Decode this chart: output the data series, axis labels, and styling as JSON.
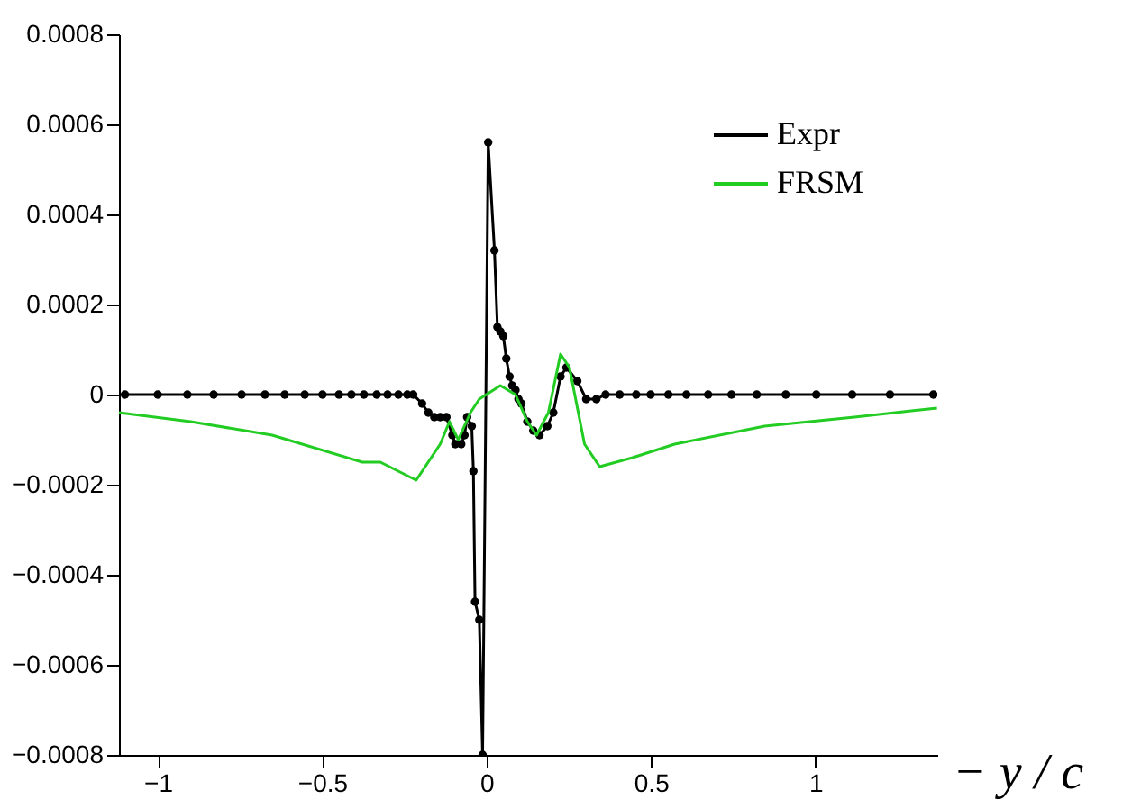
{
  "chart_data": {
    "type": "line",
    "xlabel": "− y / c",
    "xlim": [
      -1.118,
      1.371
    ],
    "xticks": [
      -1,
      -0.5,
      0,
      0.5,
      1
    ],
    "ylim": [
      -0.0008,
      0.0008
    ],
    "yticks": [
      -0.0008,
      -0.0006,
      -0.0004,
      -0.0002,
      0,
      0.0002,
      0.0004,
      0.0006,
      0.0008
    ],
    "grid": false,
    "legend": "top right",
    "series": [
      {
        "name": "Expr",
        "color": "#000000",
        "marker": "circle",
        "x": [
          -1.1,
          -1.0,
          -0.91,
          -0.83,
          -0.745,
          -0.674,
          -0.614,
          -0.553,
          -0.499,
          -0.449,
          -0.411,
          -0.373,
          -0.334,
          -0.301,
          -0.268,
          -0.241,
          -0.223,
          -0.196,
          -0.177,
          -0.159,
          -0.141,
          -0.122,
          -0.104,
          -0.095,
          -0.077,
          -0.067,
          -0.059,
          -0.045,
          -0.04,
          -0.035,
          -0.022,
          -0.012,
          0.005,
          0.024,
          0.033,
          0.042,
          0.051,
          0.06,
          0.07,
          0.078,
          0.088,
          0.097,
          0.106,
          0.124,
          0.142,
          0.161,
          0.185,
          0.203,
          0.225,
          0.243,
          0.276,
          0.303,
          0.334,
          0.362,
          0.405,
          0.455,
          0.499,
          0.553,
          0.608,
          0.674,
          0.745,
          0.822,
          0.91,
          1.003,
          1.112,
          1.227,
          1.359
        ],
        "values": [
          0,
          0,
          0,
          0,
          0,
          0,
          0,
          0,
          0,
          0,
          0,
          0,
          0,
          0,
          0,
          0,
          0,
          -2e-05,
          -4e-05,
          -5e-05,
          -5e-05,
          -5e-05,
          -9e-05,
          -0.00011,
          -0.00011,
          -9e-05,
          -5e-05,
          -7e-05,
          -0.00017,
          -0.00046,
          -0.0005,
          -0.0008,
          0.00056,
          0.00032,
          0.00015,
          0.00014,
          0.00013,
          8e-05,
          4e-05,
          2e-05,
          1e-05,
          -1e-05,
          -2e-05,
          -6e-05,
          -8e-05,
          -9e-05,
          -7e-05,
          -4e-05,
          4e-05,
          6e-05,
          3e-05,
          -1e-05,
          -1e-05,
          0,
          0,
          0,
          0,
          0,
          0,
          0,
          0,
          0,
          0,
          0,
          0,
          0,
          0
        ]
      },
      {
        "name": "FRSM",
        "color": "#22cc22",
        "marker": "none",
        "x": [
          -1.118,
          -0.9,
          -0.652,
          -0.378,
          -0.323,
          -0.214,
          -0.141,
          -0.113,
          -0.086,
          -0.049,
          -0.022,
          0.042,
          0.088,
          0.124,
          0.152,
          0.188,
          0.225,
          0.252,
          0.298,
          0.344,
          0.444,
          0.572,
          0.846,
          1.119,
          1.37
        ],
        "values": [
          -4e-05,
          -6e-05,
          -9e-05,
          -0.00015,
          -0.00015,
          -0.00019,
          -0.00011,
          -6e-05,
          -0.0001,
          -4e-05,
          -1e-05,
          2e-05,
          0,
          -6e-05,
          -9e-05,
          -4e-05,
          9e-05,
          6e-05,
          -0.00011,
          -0.00016,
          -0.00014,
          -0.00011,
          -7e-05,
          -5e-05,
          -3e-05
        ]
      }
    ]
  }
}
